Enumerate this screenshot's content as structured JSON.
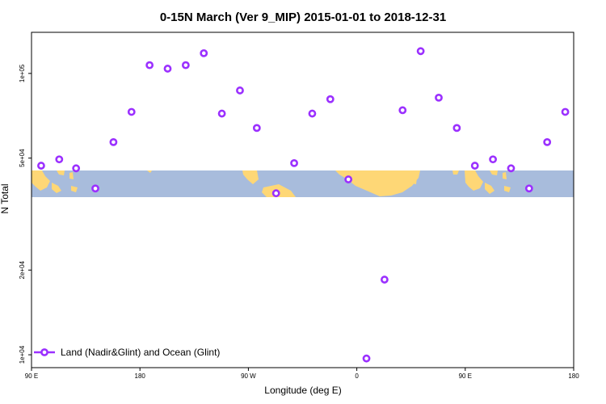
{
  "chart_data": {
    "type": "scatter",
    "title": "0-15N March (Ver 9_MIP)   2015-01-01 to 2018-12-31",
    "xlabel": "Longitude (deg E)",
    "ylabel": "N Total",
    "y_scale": "log",
    "xlim": [
      90,
      540
    ],
    "ylim": [
      9000,
      140000
    ],
    "x_ticks": [
      {
        "value": 90,
        "label": "90 E"
      },
      {
        "value": 180,
        "label": "180"
      },
      {
        "value": 270,
        "label": "90 W"
      },
      {
        "value": 360,
        "label": "0"
      },
      {
        "value": 450,
        "label": "90 E"
      },
      {
        "value": 540,
        "label": "180"
      }
    ],
    "y_ticks": [
      {
        "value": 10000,
        "label": "1e+04"
      },
      {
        "value": 20000,
        "label": "2e+04"
      },
      {
        "value": 50000,
        "label": "5e+04"
      },
      {
        "value": 100000,
        "label": "1e+05"
      }
    ],
    "grid": false,
    "legend_position": "bottom-left",
    "series": [
      {
        "name": "Land (Nadir&Glint) and Ocean (Glint)",
        "color": "#9b30ff",
        "points": [
          {
            "x": 98,
            "y": 47000
          },
          {
            "x": 113,
            "y": 49500
          },
          {
            "x": 127,
            "y": 46000
          },
          {
            "x": 143,
            "y": 39000
          },
          {
            "x": 158,
            "y": 57000
          },
          {
            "x": 173,
            "y": 73000
          },
          {
            "x": 188,
            "y": 107000
          },
          {
            "x": 203,
            "y": 104000
          },
          {
            "x": 218,
            "y": 107000
          },
          {
            "x": 233,
            "y": 118000
          },
          {
            "x": 248,
            "y": 72000
          },
          {
            "x": 263,
            "y": 87000
          },
          {
            "x": 277,
            "y": 64000
          },
          {
            "x": 293,
            "y": 37500
          },
          {
            "x": 308,
            "y": 48000
          },
          {
            "x": 323,
            "y": 72000
          },
          {
            "x": 338,
            "y": 81000
          },
          {
            "x": 353,
            "y": 42000
          },
          {
            "x": 368,
            "y": 9700
          },
          {
            "x": 383,
            "y": 18500
          },
          {
            "x": 398,
            "y": 74000
          },
          {
            "x": 413,
            "y": 120000
          },
          {
            "x": 428,
            "y": 82000
          },
          {
            "x": 443,
            "y": 64000
          },
          {
            "x": 458,
            "y": 47000
          },
          {
            "x": 473,
            "y": 49500
          },
          {
            "x": 488,
            "y": 46000
          },
          {
            "x": 503,
            "y": 39000
          },
          {
            "x": 518,
            "y": 57000
          },
          {
            "x": 533,
            "y": 73000
          }
        ]
      }
    ],
    "background_map": {
      "ocean_color": "#a8bcdc",
      "land_color": "#fed776",
      "lat_range": "0-15N"
    }
  }
}
